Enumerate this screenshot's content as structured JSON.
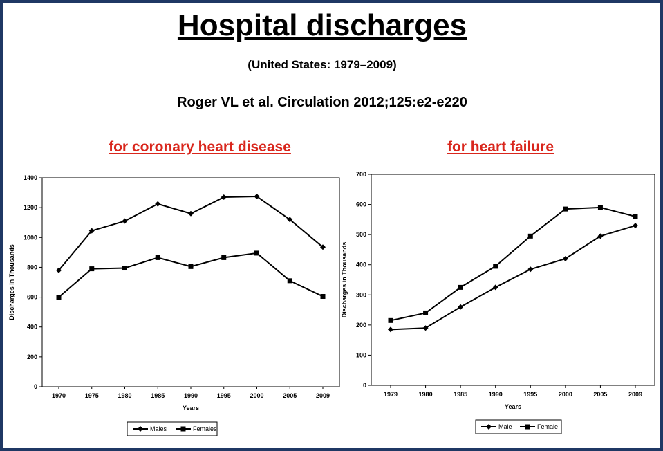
{
  "slide": {
    "title": "Hospital discharges",
    "subtitle": "(United States: 1979–2009)",
    "citation": "Roger VL et al. Circulation 2012;125:e2-e220"
  },
  "chart_data": [
    {
      "type": "line",
      "title": "for coronary heart disease",
      "xlabel": "Years",
      "ylabel": "Discharges in Thousands",
      "categories": [
        "1970",
        "1975",
        "1980",
        "1985",
        "1990",
        "1995",
        "2000",
        "2005",
        "2009"
      ],
      "ylim": [
        0,
        1400
      ],
      "yticks": [
        0,
        200,
        400,
        600,
        800,
        1000,
        1200,
        1400
      ],
      "grid": false,
      "legend": "bottom",
      "series": [
        {
          "name": "Males",
          "marker": "diamond",
          "values": [
            780,
            1045,
            1110,
            1225,
            1160,
            1270,
            1275,
            1120,
            935
          ]
        },
        {
          "name": "Females",
          "marker": "square",
          "values": [
            600,
            790,
            795,
            865,
            805,
            865,
            895,
            710,
            605
          ]
        }
      ]
    },
    {
      "type": "line",
      "title": "for heart failure",
      "xlabel": "Years",
      "ylabel": "Discharges in Thousands",
      "categories": [
        "1979",
        "1980",
        "1985",
        "1990",
        "1995",
        "2000",
        "2005",
        "2009"
      ],
      "ylim": [
        0,
        700
      ],
      "yticks": [
        0,
        100,
        200,
        300,
        400,
        500,
        600,
        700
      ],
      "grid": false,
      "legend": "bottom",
      "series": [
        {
          "name": "Male",
          "marker": "diamond",
          "values": [
            185,
            190,
            260,
            325,
            385,
            420,
            495,
            530
          ]
        },
        {
          "name": "Female",
          "marker": "square",
          "values": [
            215,
            240,
            325,
            395,
            495,
            585,
            590,
            560
          ]
        }
      ]
    }
  ]
}
